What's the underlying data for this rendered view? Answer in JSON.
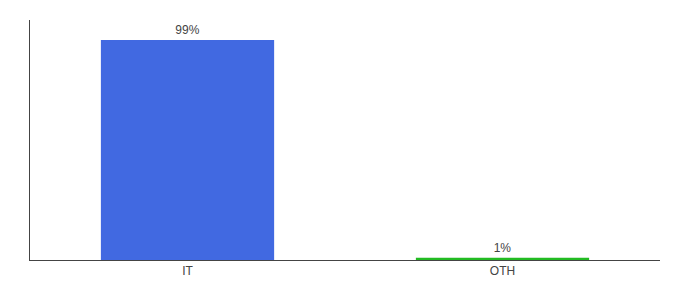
{
  "chart_data": {
    "type": "bar",
    "categories": [
      "IT",
      "OTH"
    ],
    "values": [
      99,
      1
    ],
    "value_labels": [
      "99%",
      "1%"
    ],
    "data_labels": true,
    "colors": [
      "#4169e1",
      "#22bb22"
    ],
    "ylim": [
      0,
      108
    ],
    "yticks": [],
    "grid": false,
    "tick_labels": "x"
  }
}
